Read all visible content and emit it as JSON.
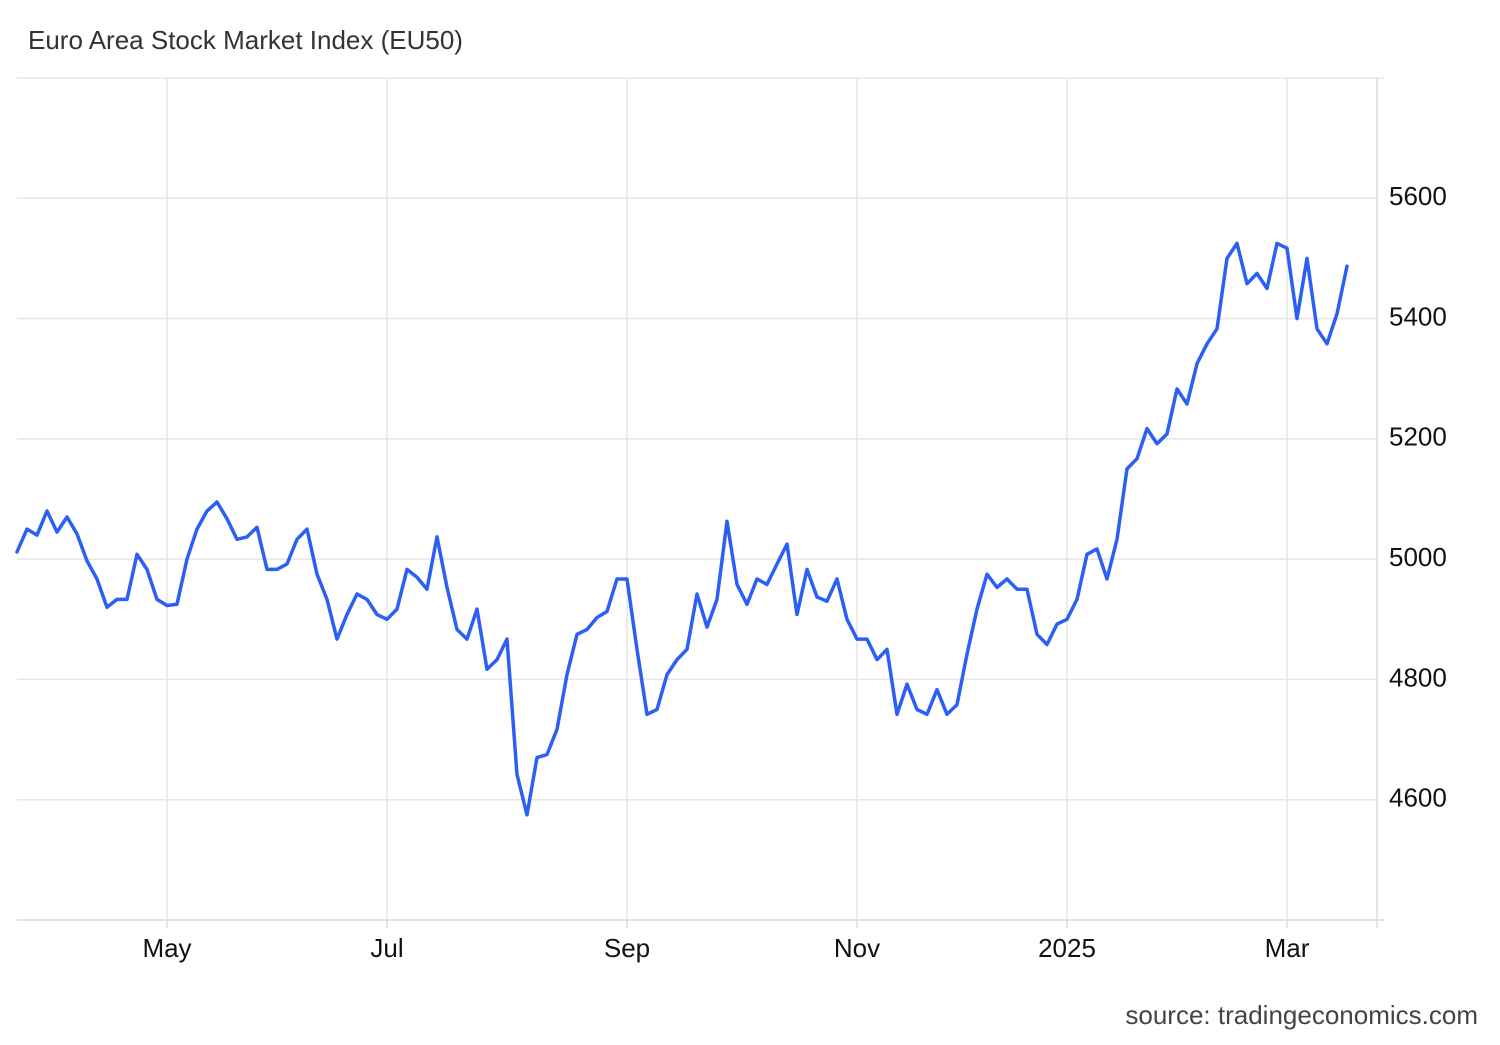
{
  "chart_data": {
    "type": "line",
    "title": "Euro Area Stock Market Index (EU50)",
    "source": "source: tradingeconomics.com",
    "color": "#2b5ff5",
    "grid": true,
    "ylim": [
      4400,
      5800
    ],
    "yticks": [
      4600,
      4800,
      5000,
      5200,
      5400,
      5600
    ],
    "categories": [
      null,
      null,
      null,
      null,
      null,
      null,
      null,
      null,
      null,
      null,
      null,
      null,
      null,
      null,
      null,
      "May",
      null,
      null,
      null,
      null,
      null,
      null,
      null,
      null,
      null,
      null,
      null,
      null,
      null,
      null,
      null,
      null,
      null,
      null,
      null,
      null,
      null,
      "Jul",
      null,
      null,
      null,
      null,
      null,
      null,
      null,
      null,
      null,
      null,
      null,
      null,
      null,
      null,
      null,
      null,
      null,
      null,
      null,
      null,
      null,
      null,
      null,
      "Sep",
      null,
      null,
      null,
      null,
      null,
      null,
      null,
      null,
      null,
      null,
      null,
      null,
      null,
      null,
      null,
      null,
      null,
      null,
      null,
      null,
      null,
      null,
      "Nov",
      null,
      null,
      null,
      null,
      null,
      null,
      null,
      null,
      null,
      null,
      null,
      null,
      null,
      null,
      null,
      null,
      null,
      null,
      null,
      null,
      "2025",
      null,
      null,
      null,
      null,
      null,
      null,
      null,
      null,
      null,
      null,
      null,
      null,
      null,
      null,
      null,
      null,
      null,
      null,
      null,
      null,
      null,
      "Mar",
      null,
      null,
      null,
      null,
      null,
      null
    ],
    "values": [
      5012,
      5050,
      5040,
      5080,
      5045,
      5070,
      5042,
      4997,
      4967,
      4920,
      4933,
      4933,
      5008,
      4983,
      4933,
      4923,
      4925,
      5000,
      5050,
      5080,
      5095,
      5067,
      5033,
      5037,
      5053,
      4983,
      4983,
      4992,
      5033,
      5050,
      4975,
      4933,
      4867,
      4908,
      4942,
      4933,
      4908,
      4900,
      4917,
      4983,
      4970,
      4950,
      5037,
      4953,
      4883,
      4867,
      4917,
      4817,
      4833,
      4867,
      4642,
      4575,
      4670,
      4675,
      4717,
      4808,
      4875,
      4883,
      4903,
      4913,
      4967,
      4967,
      4850,
      4742,
      4750,
      4808,
      4833,
      4850,
      4942,
      4887,
      4933,
      5063,
      4958,
      4925,
      4967,
      4958,
      4992,
      5025,
      4908,
      4983,
      4937,
      4930,
      4967,
      4900,
      4867,
      4867,
      4833,
      4850,
      4742,
      4792,
      4750,
      4742,
      4783,
      4742,
      4758,
      4842,
      4917,
      4975,
      4953,
      4967,
      4950,
      4950,
      4875,
      4858,
      4892,
      4900,
      4933,
      5008,
      5017,
      4967,
      5033,
      5150,
      5167,
      5217,
      5192,
      5208,
      5283,
      5258,
      5325,
      5358,
      5383,
      5500,
      5525,
      5458,
      5475,
      5450,
      5525,
      5517,
      5400,
      5500,
      5383,
      5358,
      5408,
      5487
    ]
  }
}
